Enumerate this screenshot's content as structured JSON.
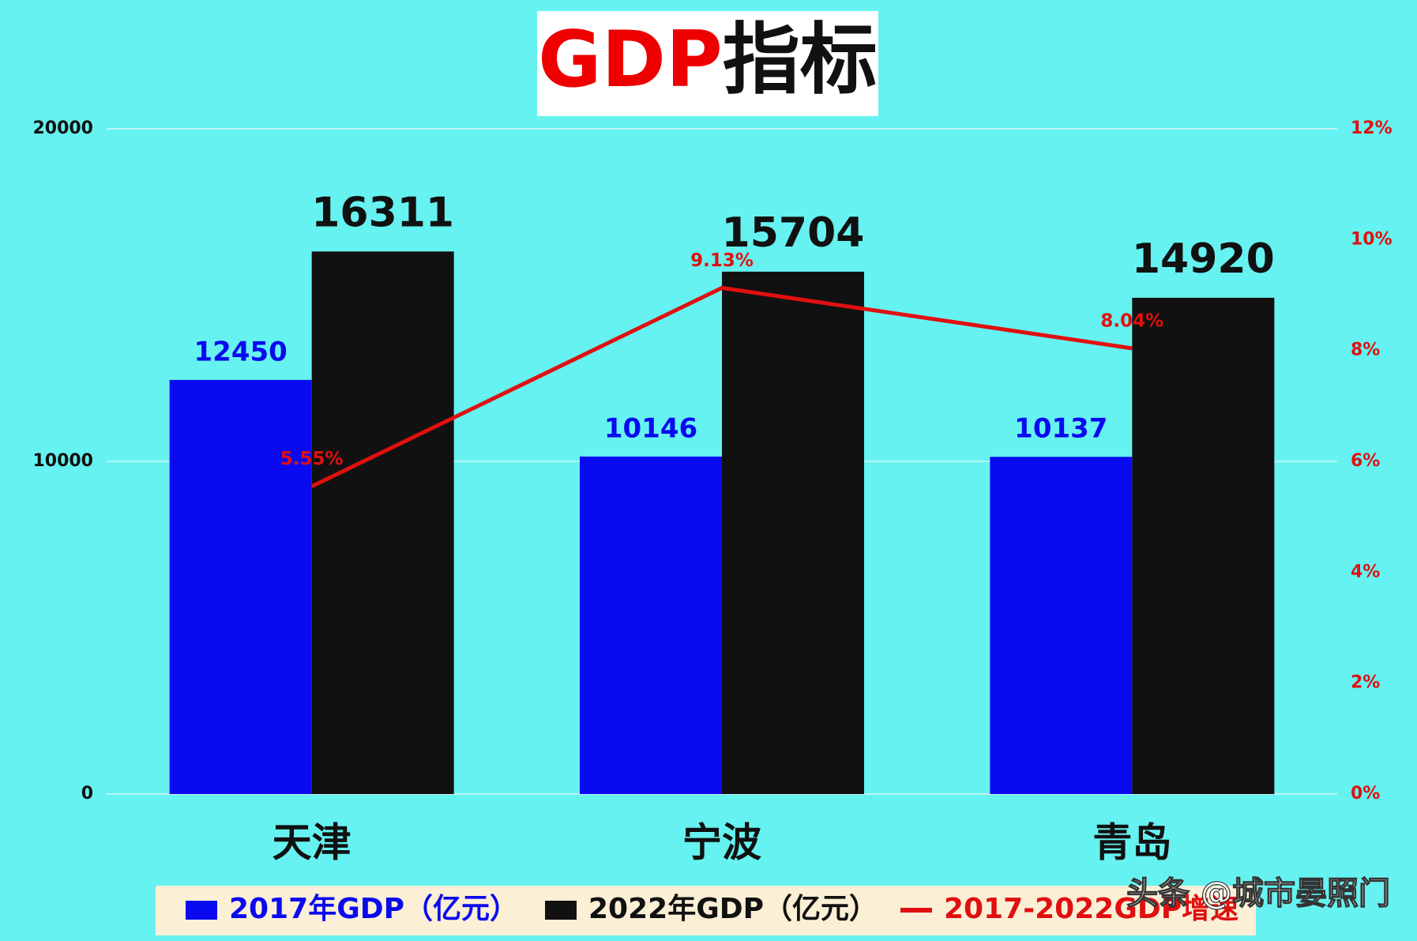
{
  "chart_data": {
    "type": "bar-line",
    "title": [
      "GDP",
      "指标"
    ],
    "title_colors": [
      "#ee0000",
      "#111111"
    ],
    "categories": [
      "天津",
      "宁波",
      "青岛"
    ],
    "series": [
      {
        "name": "2017年GDP（亿元）",
        "color": "#0a0af0",
        "type": "bar",
        "values": [
          12450,
          10146,
          10137
        ]
      },
      {
        "name": "2022年GDP（亿元）",
        "color": "#111111",
        "type": "bar",
        "values": [
          16311,
          15704,
          14920
        ]
      },
      {
        "name": "2017-2022GDP增速",
        "color": "#e01010",
        "type": "line",
        "axis": "y2",
        "values": [
          5.55,
          9.13,
          8.04
        ],
        "value_labels": [
          "5.55%",
          "9.13%",
          "8.04%"
        ]
      }
    ],
    "ylim": [
      0,
      20000
    ],
    "yticks": [
      0,
      10000,
      20000
    ],
    "y2lim": [
      0,
      12
    ],
    "y2ticks": [
      {
        "value": 0,
        "label": "0%"
      },
      {
        "value": 2,
        "label": "2%"
      },
      {
        "value": 4,
        "label": "4%"
      },
      {
        "value": 6,
        "label": "6%"
      },
      {
        "value": 8,
        "label": "8%"
      },
      {
        "value": 10,
        "label": "10%"
      },
      {
        "value": 12,
        "label": "12%"
      }
    ],
    "grid": true,
    "background": "#66f2f0",
    "watermark": "头条 @城市晏照门"
  }
}
